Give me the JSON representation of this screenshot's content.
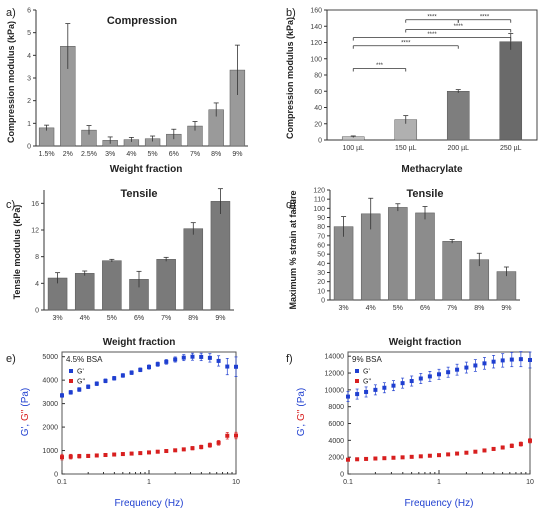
{
  "chart_data": [
    {
      "type": "bar",
      "panel": "a)",
      "title": "Compression",
      "xlabel": "Weight fraction",
      "ylabel": "Compression modulus (kPa)",
      "categories": [
        "1.5%",
        "2%",
        "2.5%",
        "3%",
        "4%",
        "5%",
        "6%",
        "7%",
        "8%",
        "9%"
      ],
      "values": [
        0.8,
        4.4,
        0.7,
        0.25,
        0.28,
        0.32,
        0.52,
        0.88,
        1.6,
        3.35
      ],
      "errors": [
        0.12,
        1.0,
        0.2,
        0.15,
        0.1,
        0.12,
        0.22,
        0.2,
        0.3,
        1.1
      ],
      "ylim": [
        0,
        6
      ],
      "yticks": [
        0,
        1,
        2,
        3,
        4,
        5,
        6
      ],
      "bar_color": "#9a9a9a"
    },
    {
      "type": "bar",
      "panel": "b)",
      "title": "",
      "xlabel": "Methacrylate",
      "ylabel": "Compression modulus (kPa)",
      "categories": [
        "100 µL",
        "150 µL",
        "200 µL",
        "250 µL"
      ],
      "values": [
        4,
        25,
        60,
        121
      ],
      "errors": [
        1,
        5,
        2,
        10
      ],
      "ylim": [
        0,
        160
      ],
      "yticks": [
        0,
        20,
        40,
        60,
        80,
        100,
        120,
        140,
        160
      ],
      "bar_colors": [
        "#c4c4c4",
        "#b0b0b0",
        "#7e7e7e",
        "#6a6a6a"
      ],
      "significance": [
        {
          "from": 0,
          "to": 1,
          "label": "***"
        },
        {
          "from": 0,
          "to": 2,
          "label": "****"
        },
        {
          "from": 0,
          "to": 3,
          "label": "****"
        },
        {
          "from": 1,
          "to": 3,
          "label": "****"
        },
        {
          "from": 2,
          "to": 3,
          "label": "****"
        },
        {
          "from": 1,
          "to": 2,
          "label": "****"
        }
      ]
    },
    {
      "type": "bar",
      "panel": "c)",
      "title": "Tensile",
      "xlabel": "Weight fraction",
      "ylabel": "Tensile modulus (kPa)",
      "categories": [
        "3%",
        "4%",
        "5%",
        "6%",
        "7%",
        "8%",
        "9%"
      ],
      "values": [
        4.8,
        5.5,
        7.4,
        4.6,
        7.6,
        12.2,
        16.3
      ],
      "errors": [
        0.8,
        0.35,
        0.2,
        1.2,
        0.3,
        0.9,
        1.9
      ],
      "ylim": [
        0,
        18
      ],
      "yticks": [
        0,
        4,
        8,
        12,
        16
      ],
      "bar_color": "#7a7a7a"
    },
    {
      "type": "bar",
      "panel": "d)",
      "title": "Tensile",
      "xlabel": "Weight fraction",
      "ylabel": "Maximum % strain at failure",
      "categories": [
        "3%",
        "4%",
        "5%",
        "6%",
        "7%",
        "8%",
        "9%"
      ],
      "values": [
        80,
        94,
        101,
        95,
        64,
        44,
        31
      ],
      "errors": [
        11,
        17,
        4,
        7,
        2,
        7,
        5
      ],
      "ylim": [
        0,
        120
      ],
      "yticks": [
        0,
        10,
        20,
        30,
        40,
        50,
        60,
        70,
        80,
        90,
        100,
        110,
        120
      ],
      "bar_color": "#8c8c8c"
    },
    {
      "type": "scatter",
      "panel": "e)",
      "annotation": "4.5% BSA",
      "xlabel": "Frequency (Hz)",
      "ylabel_parts": [
        "G'",
        ", ",
        "G''",
        " (Pa)"
      ],
      "xscale": "log",
      "xlim": [
        0.1,
        10
      ],
      "xticks": [
        0.1,
        1,
        10
      ],
      "xticklabels": [
        "0.1",
        "1",
        "10"
      ],
      "ylim": [
        0,
        5200
      ],
      "yticks": [
        0,
        1000,
        2000,
        3000,
        4000,
        5000
      ],
      "series": [
        {
          "name": "G'",
          "color": "#1f3fd0",
          "x": [
            0.1,
            0.126,
            0.158,
            0.2,
            0.251,
            0.316,
            0.398,
            0.501,
            0.631,
            0.794,
            1,
            1.26,
            1.58,
            2,
            2.51,
            3.16,
            3.98,
            5.01,
            6.31,
            7.94,
            10
          ],
          "y": [
            3350,
            3480,
            3600,
            3720,
            3850,
            3970,
            4080,
            4200,
            4320,
            4440,
            4560,
            4680,
            4780,
            4880,
            4960,
            5000,
            4990,
            4950,
            4820,
            4580,
            4570
          ],
          "err": [
            80,
            80,
            80,
            80,
            80,
            80,
            80,
            80,
            80,
            80,
            90,
            90,
            100,
            110,
            130,
            150,
            160,
            180,
            220,
            350,
            420
          ]
        },
        {
          "name": "G''",
          "color": "#d81f1f",
          "x": [
            0.1,
            0.126,
            0.158,
            0.2,
            0.251,
            0.316,
            0.398,
            0.501,
            0.631,
            0.794,
            1,
            1.26,
            1.58,
            2,
            2.51,
            3.16,
            3.98,
            5.01,
            6.31,
            7.94,
            10
          ],
          "y": [
            720,
            740,
            760,
            770,
            790,
            810,
            830,
            850,
            870,
            890,
            920,
            950,
            980,
            1010,
            1050,
            1100,
            1150,
            1230,
            1330,
            1630,
            1640
          ],
          "err": [
            120,
            100,
            80,
            70,
            60,
            60,
            60,
            60,
            60,
            60,
            60,
            60,
            60,
            60,
            60,
            70,
            80,
            90,
            100,
            140,
            140
          ]
        }
      ]
    },
    {
      "type": "scatter",
      "panel": "f)",
      "annotation": "9% BSA",
      "xlabel": "Frequency (Hz)",
      "ylabel_parts": [
        "G'",
        ", ",
        "G''",
        " (Pa)"
      ],
      "xscale": "log",
      "xlim": [
        0.1,
        10
      ],
      "xticks": [
        0.1,
        1,
        10
      ],
      "xticklabels": [
        "0.1",
        "1",
        "10"
      ],
      "ylim": [
        0,
        14500
      ],
      "yticks": [
        0,
        2000,
        4000,
        6000,
        8000,
        10000,
        12000,
        14000
      ],
      "series": [
        {
          "name": "G'",
          "color": "#1f3fd0",
          "x": [
            0.1,
            0.126,
            0.158,
            0.2,
            0.251,
            0.316,
            0.398,
            0.501,
            0.631,
            0.794,
            1,
            1.26,
            1.58,
            2,
            2.51,
            3.16,
            3.98,
            5.01,
            6.31,
            7.94,
            10
          ],
          "y": [
            9200,
            9500,
            9750,
            10000,
            10250,
            10500,
            10800,
            11050,
            11350,
            11600,
            11850,
            12100,
            12400,
            12650,
            12900,
            13150,
            13350,
            13500,
            13600,
            13650,
            13550
          ],
          "err": [
            600,
            600,
            600,
            600,
            600,
            600,
            600,
            600,
            600,
            600,
            600,
            600,
            650,
            650,
            700,
            700,
            750,
            800,
            850,
            900,
            950
          ]
        },
        {
          "name": "G''",
          "color": "#d81f1f",
          "x": [
            0.1,
            0.126,
            0.158,
            0.2,
            0.251,
            0.316,
            0.398,
            0.501,
            0.631,
            0.794,
            1,
            1.26,
            1.58,
            2,
            2.51,
            3.16,
            3.98,
            5.01,
            6.31,
            7.94,
            10
          ],
          "y": [
            1700,
            1750,
            1790,
            1840,
            1880,
            1930,
            1980,
            2040,
            2100,
            2170,
            2240,
            2330,
            2430,
            2530,
            2650,
            2800,
            2980,
            3150,
            3350,
            3560,
            3950
          ],
          "err": [
            150,
            150,
            150,
            150,
            150,
            150,
            150,
            150,
            150,
            150,
            150,
            150,
            150,
            150,
            160,
            170,
            180,
            200,
            220,
            240,
            260
          ]
        }
      ]
    }
  ]
}
